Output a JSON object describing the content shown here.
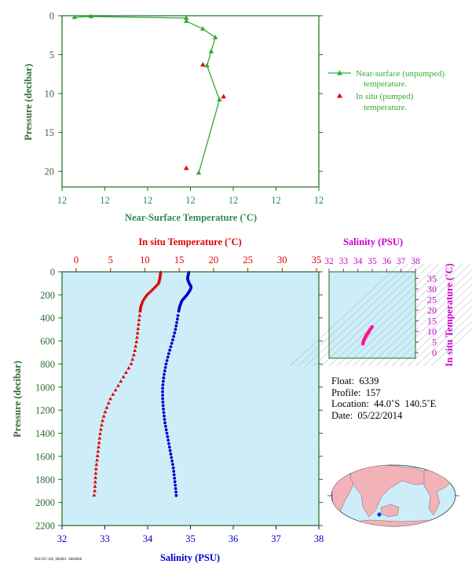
{
  "colors": {
    "axis": "#1d6a1d",
    "label_green": "#2e8b57",
    "legend_green": "#33aa33",
    "temp": "#e00000",
    "sal": "#0000cc",
    "sal_title": "#cc00cc",
    "plot_bg": "#cdeef8",
    "dots": "#ff1493"
  },
  "chart_data": [
    {
      "type": "line",
      "xlabel": "Near-Surface Temperature (˚C)",
      "ylabel": "Pressure (decibar)",
      "x_tick_labels": [
        "12",
        "12",
        "12",
        "12",
        "12",
        "12",
        "12"
      ],
      "x_range": [
        11.86,
        12.48
      ],
      "ylim": [
        0,
        22
      ],
      "y_ticks": [
        0,
        5,
        10,
        15,
        20
      ],
      "y_inverted": true,
      "series": [
        {
          "name": "Near-surface (unpumped) temperature.",
          "marker": "triangle",
          "color": "#33aa33",
          "x": [
            11.89,
            11.93,
            12.16,
            12.16,
            12.2,
            12.23,
            12.22,
            12.21,
            12.24,
            12.19
          ],
          "y": [
            0.2,
            0.1,
            0.3,
            0.7,
            1.7,
            2.8,
            4.6,
            6.4,
            10.8,
            20.2
          ]
        },
        {
          "name": "In situ (pumped) temperature.",
          "marker": "triangle",
          "color": "#e00000",
          "x": [
            12.2,
            12.25,
            12.16
          ],
          "y": [
            6.3,
            10.4,
            19.6
          ]
        }
      ],
      "legend": [
        {
          "line1": "Near-surface (unpumped)",
          "line2": "temperature."
        },
        {
          "line1": "In situ (pumped)",
          "line2": "temperature."
        }
      ],
      "legend_placement": "right"
    },
    {
      "type": "scatter",
      "top_xlabel": "In situ Temperature (˚C)",
      "bottom_xlabel": "Salinity (PSU)",
      "ylabel": "Pressure (decibar)",
      "temp_range": [
        0,
        35
      ],
      "temp_ticks": [
        0,
        5,
        10,
        15,
        20,
        25,
        30,
        35
      ],
      "sal_range": [
        32,
        38
      ],
      "sal_ticks": [
        32,
        33,
        34,
        35,
        36,
        37,
        38
      ],
      "ylim": [
        0,
        2200
      ],
      "y_ticks": [
        0,
        200,
        400,
        600,
        800,
        1000,
        1200,
        1400,
        1600,
        1800,
        2000,
        2200
      ],
      "y_inverted": true,
      "temperature_profile": {
        "pressure": [
          5,
          50,
          100,
          150,
          200,
          250,
          300,
          350,
          400,
          500,
          600,
          700,
          800,
          900,
          1000,
          1100,
          1200,
          1300,
          1400,
          1500,
          1600,
          1700,
          1800,
          1900,
          1950
        ],
        "temperature": [
          12.3,
          12.2,
          12.0,
          11.2,
          10.3,
          9.7,
          9.4,
          9.3,
          9.2,
          9.0,
          8.8,
          8.5,
          8.0,
          7.0,
          6.0,
          5.0,
          4.3,
          3.8,
          3.5,
          3.3,
          3.1,
          2.9,
          2.8,
          2.7,
          2.6
        ]
      },
      "salinity_profile": {
        "pressure": [
          5,
          60,
          100,
          130,
          160,
          200,
          250,
          300,
          350,
          400,
          500,
          600,
          700,
          800,
          900,
          1000,
          1100,
          1200,
          1300,
          1400,
          1500,
          1600,
          1700,
          1800,
          1900,
          1950
        ],
        "salinity": [
          34.96,
          34.93,
          34.97,
          35.02,
          34.99,
          34.92,
          34.8,
          34.75,
          34.72,
          34.7,
          34.65,
          34.58,
          34.5,
          34.43,
          34.38,
          34.35,
          34.35,
          34.37,
          34.4,
          34.45,
          34.5,
          34.55,
          34.6,
          34.63,
          34.66,
          34.67
        ]
      }
    },
    {
      "type": "scatter",
      "top_xlabel": "Salinity (PSU)",
      "right_ylabel": "In situ Temperature (˚C)",
      "x_range": [
        32,
        38
      ],
      "x_ticks": [
        32,
        33,
        34,
        35,
        36,
        37,
        38
      ],
      "y_range": [
        0,
        35
      ],
      "y_ticks": [
        0,
        5,
        10,
        15,
        20,
        25,
        30,
        35
      ],
      "points": {
        "salinity": [
          34.35,
          34.38,
          34.42,
          34.5,
          34.58,
          34.65,
          34.7,
          34.75,
          34.8,
          34.92,
          34.99
        ],
        "temperature": [
          4.2,
          5.0,
          6.0,
          7.0,
          8.0,
          8.8,
          9.2,
          9.6,
          10.5,
          11.5,
          12.2
        ]
      }
    }
  ],
  "info": {
    "float": "Float:  6339",
    "profile": "Profile:  157",
    "location": "Location:  44.0˚S  140.5˚E",
    "date": "Date:  05/22/2014"
  },
  "footer_tiny": "NS6339/106_000001 0000000"
}
